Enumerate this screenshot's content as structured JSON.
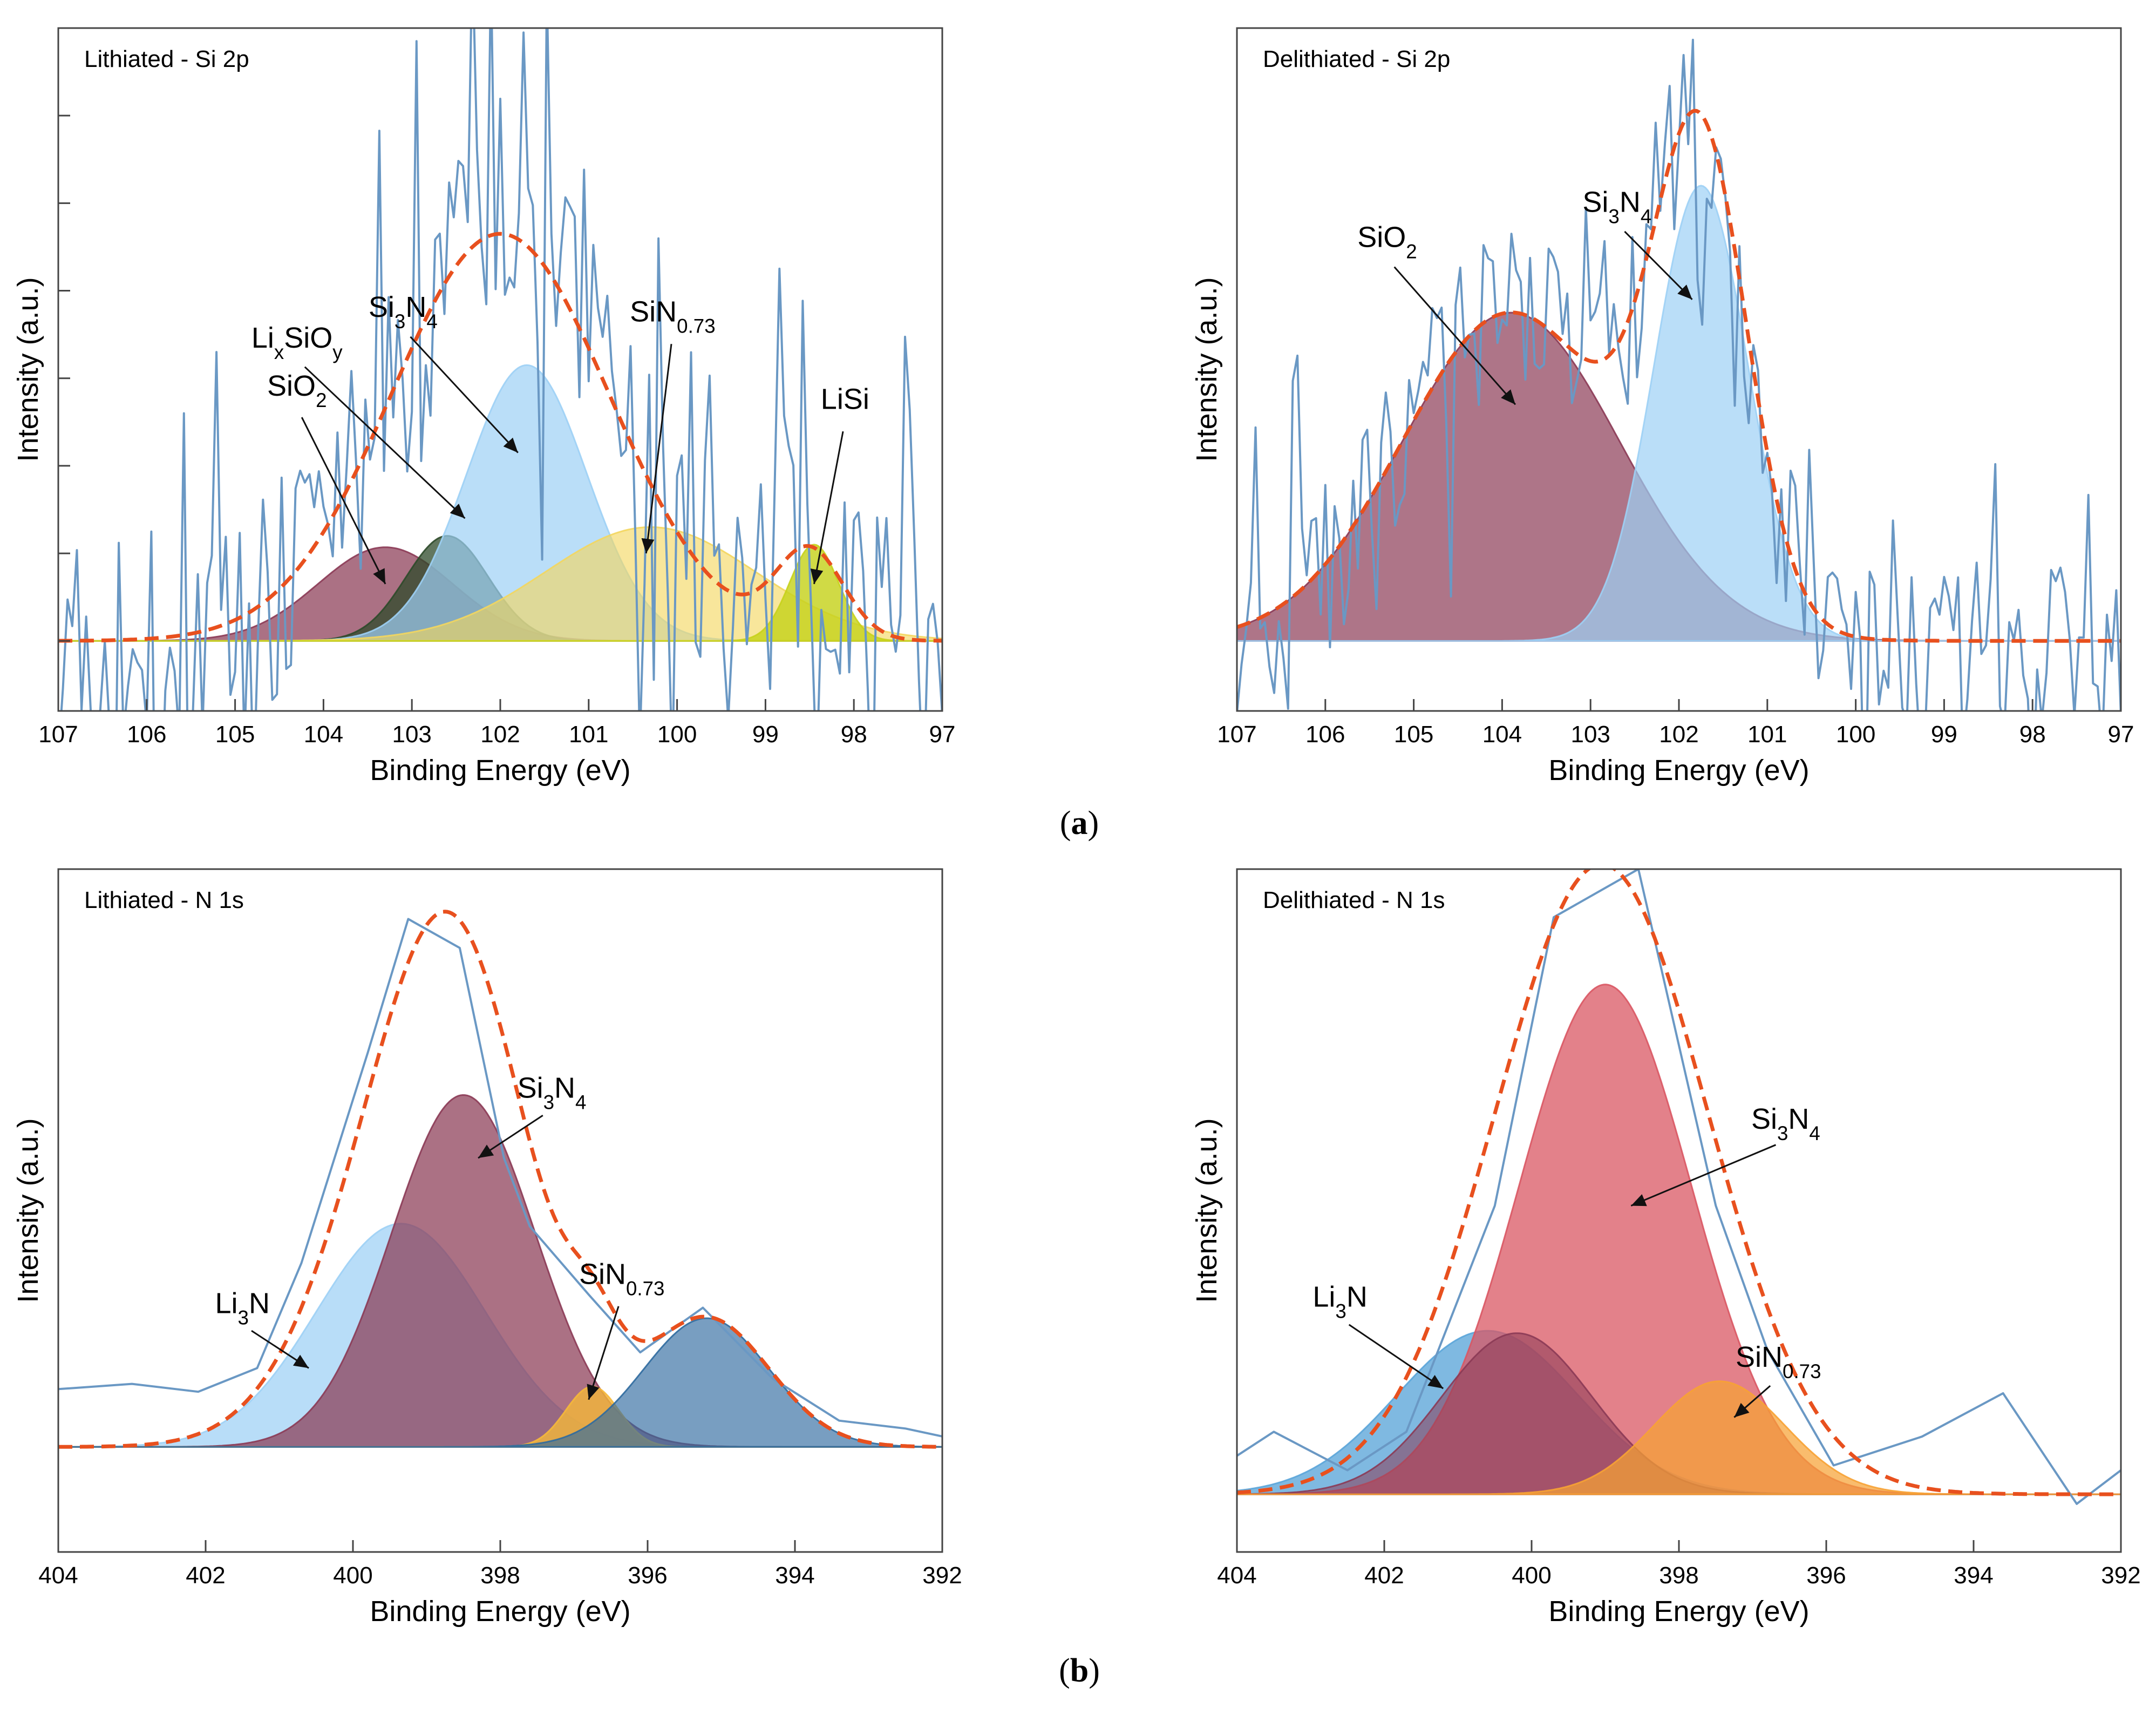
{
  "figure": {
    "captions": [
      {
        "pre": "(",
        "bold": "a",
        "post": ")"
      },
      {
        "pre": "(",
        "bold": "b",
        "post": ")"
      }
    ]
  },
  "chart_data": [
    {
      "type": "area",
      "title": "Lithiated - Si 2p",
      "xlabel": "Binding Energy (eV)",
      "ylabel": "Intensity (a.u.)",
      "xlim": [
        107,
        97
      ],
      "x_reversed": true,
      "xticks": [
        107,
        106,
        105,
        104,
        103,
        102,
        101,
        100,
        99,
        98,
        97
      ],
      "ylim": [
        -0.08,
        0.7
      ],
      "yticks": [
        0,
        0.1,
        0.2,
        0.3,
        0.4,
        0.5,
        0.6,
        0.7
      ],
      "grid": false,
      "components": [
        {
          "name": "SiO2",
          "label_parts": [
            [
              "SiO",
              ""
            ],
            [
              "2",
              "sub"
            ]
          ],
          "center": 103.3,
          "fwhm": 1.8,
          "height": 0.107,
          "color": "#8b3a55",
          "opacity": 0.72
        },
        {
          "name": "LixSiOy",
          "label_parts": [
            [
              "Li",
              ""
            ],
            [
              "x",
              "sub"
            ],
            [
              "SiO",
              ""
            ],
            [
              "y",
              "sub"
            ]
          ],
          "center": 102.6,
          "fwhm": 1.1,
          "height": 0.12,
          "color": "#2d4a2a",
          "opacity": 0.75
        },
        {
          "name": "Si3N4",
          "label_parts": [
            [
              "Si",
              ""
            ],
            [
              "3",
              "sub"
            ],
            [
              "N",
              ""
            ],
            [
              "4",
              "sub"
            ]
          ],
          "center": 101.7,
          "fwhm": 1.6,
          "height": 0.315,
          "color": "#9dd0f5",
          "opacity": 0.7
        },
        {
          "name": "SiN0.73",
          "label_parts": [
            [
              "SiN",
              ""
            ],
            [
              "0.73",
              "sub"
            ]
          ],
          "center": 100.3,
          "fwhm": 2.8,
          "height": 0.13,
          "color": "#f3d65e",
          "opacity": 0.62
        },
        {
          "name": "LiSi",
          "label_parts": [
            [
              "LiSi",
              ""
            ]
          ],
          "center": 98.45,
          "fwhm": 0.65,
          "height": 0.11,
          "color": "#c6d21c",
          "opacity": 0.82
        }
      ],
      "envelope": {
        "center": 102.0,
        "fwhm": 2.9,
        "height": 0.465,
        "extra": [
          {
            "center": 98.5,
            "fwhm": 0.9,
            "height": 0.1
          }
        ],
        "color": "#e8501e"
      },
      "raw": {
        "color": "#6a98c4",
        "amp": 0.06,
        "spikes": 0.5
      },
      "annotations": [
        {
          "label": "SiO2",
          "text_x": 104.3,
          "text_y": 0.28,
          "arrow_to": [
            103.3,
            0.065
          ]
        },
        {
          "label": "LixSiOy",
          "text_x": 104.3,
          "text_y": 0.335,
          "arrow_to": [
            102.4,
            0.14
          ]
        },
        {
          "label": "Si3N4",
          "text_x": 103.1,
          "text_y": 0.37,
          "arrow_to": [
            101.8,
            0.215
          ]
        },
        {
          "label": "SiN0.73",
          "text_x": 100.05,
          "text_y": 0.365,
          "arrow_to": [
            100.35,
            0.1
          ]
        },
        {
          "label": "LiSi",
          "text_x": 98.1,
          "text_y": 0.265,
          "arrow_to": [
            98.45,
            0.065
          ]
        }
      ]
    },
    {
      "type": "area",
      "title": "Delithiated - Si 2p",
      "xlabel": "Binding Energy (eV)",
      "ylabel": "Intensity (a.u.)",
      "xlim": [
        107,
        97
      ],
      "x_reversed": true,
      "xticks": [
        107,
        106,
        105,
        104,
        103,
        102,
        101,
        100,
        99,
        98,
        97
      ],
      "ylim": [
        -0.08,
        0.7
      ],
      "yticks": [],
      "grid": false,
      "components": [
        {
          "name": "SiO2",
          "label_parts": [
            [
              "SiO",
              ""
            ],
            [
              "2",
              "sub"
            ]
          ],
          "center": 103.9,
          "fwhm": 2.9,
          "height": 0.375,
          "color": "#8b3a55",
          "opacity": 0.7
        },
        {
          "name": "Si3N4",
          "label_parts": [
            [
              "Si",
              ""
            ],
            [
              "3",
              "sub"
            ],
            [
              "N",
              ""
            ],
            [
              "4",
              "sub"
            ]
          ],
          "center": 101.75,
          "fwhm": 1.25,
          "height": 0.52,
          "color": "#9dd0f5",
          "opacity": 0.7
        }
      ],
      "envelope": {
        "use_component_sum": true,
        "color": "#e8501e"
      },
      "raw": {
        "color": "#6a98c4",
        "amp": 0.045,
        "spikes": 0.55
      },
      "annotations": [
        {
          "label": "SiO2",
          "text_x": 105.3,
          "text_y": 0.45,
          "arrow_to": [
            103.85,
            0.27
          ]
        },
        {
          "label": "Si3N4",
          "text_x": 102.7,
          "text_y": 0.49,
          "arrow_to": [
            101.85,
            0.39
          ]
        }
      ]
    },
    {
      "type": "area",
      "title": "Lithiated - N 1s",
      "xlabel": "Binding Energy (eV)",
      "ylabel": "Intensity (a.u.)",
      "xlim": [
        404,
        392
      ],
      "x_reversed": true,
      "xticks": [
        404,
        402,
        400,
        398,
        396,
        394,
        392
      ],
      "ylim": [
        -0.2,
        1.1
      ],
      "yticks": [],
      "grid": false,
      "components": [
        {
          "name": "Li3N",
          "label_parts": [
            [
              "Li",
              ""
            ],
            [
              "3",
              "sub"
            ],
            [
              "N",
              ""
            ]
          ],
          "center": 399.35,
          "fwhm": 2.7,
          "height": 0.425,
          "color": "#9dd0f5",
          "opacity": 0.72
        },
        {
          "name": "Si3N4",
          "label_parts": [
            [
              "Si",
              ""
            ],
            [
              "3",
              "sub"
            ],
            [
              "N",
              ""
            ],
            [
              "4",
              "sub"
            ]
          ],
          "center": 398.5,
          "fwhm": 2.3,
          "height": 0.67,
          "color": "#8b3a55",
          "opacity": 0.72
        },
        {
          "name": "SiN0.73",
          "label_parts": [
            [
              "SiN",
              ""
            ],
            [
              "0.73",
              "sub"
            ]
          ],
          "center": 396.75,
          "fwhm": 0.85,
          "height": 0.115,
          "color": "#f5b83a",
          "opacity": 0.8
        },
        {
          "name": "peak ~395.2 eV",
          "label_parts": [],
          "center": 395.2,
          "fwhm": 2.0,
          "height": 0.245,
          "color": "#2f6a9f",
          "opacity": 0.65
        }
      ],
      "envelope": {
        "use_component_sum": true,
        "color": "#e8501e"
      },
      "raw": {
        "points": [
          [
            404,
            0.11
          ],
          [
            403,
            0.12
          ],
          [
            402.1,
            0.105
          ],
          [
            401.3,
            0.15
          ],
          [
            400.7,
            0.35
          ],
          [
            399.8,
            0.75
          ],
          [
            399.25,
            1.005
          ],
          [
            398.55,
            0.95
          ],
          [
            397.95,
            0.55
          ],
          [
            397.6,
            0.42
          ],
          [
            396.8,
            0.29
          ],
          [
            396.1,
            0.18
          ],
          [
            395.25,
            0.265
          ],
          [
            394.3,
            0.13
          ],
          [
            393.4,
            0.05
          ],
          [
            392.5,
            0.035
          ],
          [
            392,
            0.02
          ]
        ],
        "color": "#6a98c4"
      },
      "annotations": [
        {
          "label": "Li3N",
          "text_x": 401.5,
          "text_y": 0.255,
          "arrow_to": [
            400.6,
            0.15
          ]
        },
        {
          "label": "Si3N4",
          "text_x": 397.3,
          "text_y": 0.665,
          "arrow_to": [
            398.3,
            0.55
          ]
        },
        {
          "label": "SiN0.73",
          "text_x": 396.35,
          "text_y": 0.31,
          "arrow_to": [
            396.8,
            0.09
          ]
        }
      ]
    },
    {
      "type": "area",
      "title": "Delithiated - N 1s",
      "xlabel": "Binding Energy (eV)",
      "ylabel": "Intensity (a.u.)",
      "xlim": [
        404,
        392
      ],
      "x_reversed": true,
      "xticks": [
        404,
        402,
        400,
        398,
        396,
        394,
        392
      ],
      "ylim": [
        -0.12,
        1.3
      ],
      "yticks": [],
      "grid": false,
      "components": [
        {
          "name": "Li3N",
          "label_parts": [
            [
              "Li",
              ""
            ],
            [
              "3",
              "sub"
            ],
            [
              "N",
              ""
            ]
          ],
          "center": 400.6,
          "fwhm": 2.9,
          "height": 0.34,
          "color": "#5ba5d9",
          "opacity": 0.78
        },
        {
          "name": "Si3N4",
          "label_parts": [
            [
              "Si",
              ""
            ],
            [
              "3",
              "sub"
            ],
            [
              "N",
              ""
            ],
            [
              "4",
              "sub"
            ]
          ],
          "center": 399.0,
          "fwhm": 2.75,
          "height": 1.06,
          "color": "#d95763",
          "opacity": 0.75
        },
        {
          "name": "peak ~400.2 eV",
          "label_parts": [],
          "center": 400.2,
          "fwhm": 2.4,
          "height": 0.335,
          "color": "#8b3a55",
          "opacity": 0.55
        },
        {
          "name": "SiN0.73",
          "label_parts": [
            [
              "SiN",
              ""
            ],
            [
              "0.73",
              "sub"
            ]
          ],
          "center": 397.45,
          "fwhm": 2.1,
          "height": 0.235,
          "color": "#f7a234",
          "opacity": 0.72
        }
      ],
      "envelope": {
        "center": 399.05,
        "fwhm": 3.4,
        "height": 1.31,
        "color": "#e8501e"
      },
      "raw": {
        "points": [
          [
            404,
            0.08
          ],
          [
            403.5,
            0.13
          ],
          [
            402.5,
            0.05
          ],
          [
            401.7,
            0.13
          ],
          [
            400.5,
            0.6
          ],
          [
            399.7,
            1.2
          ],
          [
            398.55,
            1.3
          ],
          [
            397.5,
            0.6
          ],
          [
            396.8,
            0.3
          ],
          [
            395.9,
            0.06
          ],
          [
            394.7,
            0.12
          ],
          [
            393.6,
            0.21
          ],
          [
            392.6,
            -0.02
          ],
          [
            392,
            0.05
          ]
        ],
        "color": "#6a98c4"
      },
      "annotations": [
        {
          "label": "Li3N",
          "text_x": 402.6,
          "text_y": 0.39,
          "arrow_to": [
            401.2,
            0.22
          ]
        },
        {
          "label": "Si3N4",
          "text_x": 396.55,
          "text_y": 0.76,
          "arrow_to": [
            398.65,
            0.6
          ]
        },
        {
          "label": "SiN0.73",
          "text_x": 396.65,
          "text_y": 0.265,
          "arrow_to": [
            397.25,
            0.16
          ]
        }
      ]
    }
  ]
}
